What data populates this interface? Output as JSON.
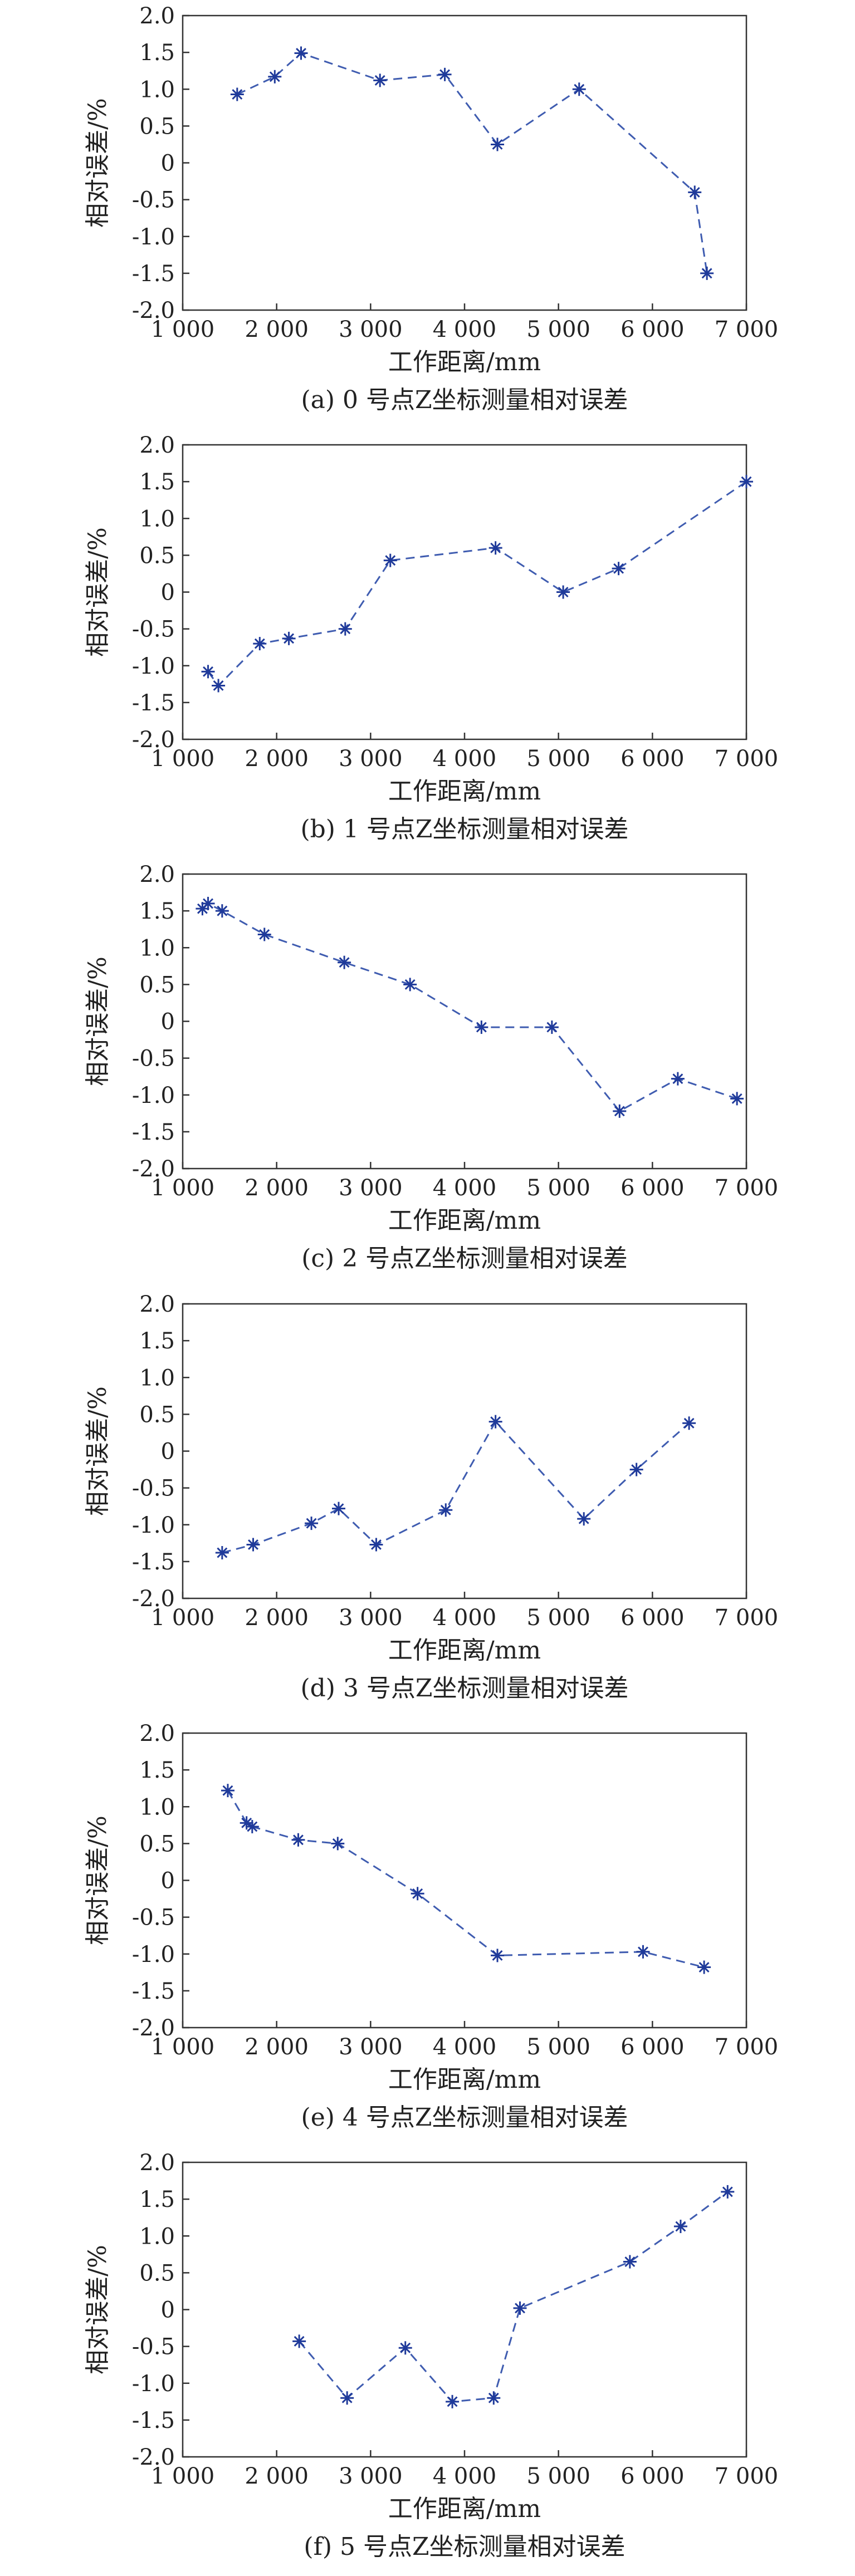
{
  "chart_data": [
    {
      "type": "line",
      "caption": "(a) 0 号点Z坐标测量相对误差",
      "xlabel": "工作距离/mm",
      "ylabel": "相对误差/%",
      "xlim": [
        1000,
        7000
      ],
      "ylim": [
        -2.0,
        2.0
      ],
      "x_ticks": [
        "1 000",
        "2 000",
        "3 000",
        "4 000",
        "5 000",
        "6 000",
        "7 000"
      ],
      "y_ticks": [
        "2.0",
        "1.5",
        "1.0",
        "0.5",
        "0",
        "-0.5",
        "-1.0",
        "-1.5",
        "-2.0"
      ],
      "grid": false,
      "series": [
        {
          "x": [
            1580,
            1980,
            2260,
            3100,
            3790,
            4350,
            5220,
            6450,
            6580
          ],
          "y": [
            0.93,
            1.17,
            1.49,
            1.12,
            1.2,
            0.25,
            1.0,
            -0.4,
            -1.5
          ]
        }
      ]
    },
    {
      "type": "line",
      "caption": "(b) 1 号点Z坐标测量相对误差",
      "xlabel": "工作距离/mm",
      "ylabel": "相对误差/%",
      "xlim": [
        1000,
        7000
      ],
      "ylim": [
        -2.0,
        2.0
      ],
      "x_ticks": [
        "1 000",
        "2 000",
        "3 000",
        "4 000",
        "5 000",
        "6 000",
        "7 000"
      ],
      "y_ticks": [
        "2.0",
        "1.5",
        "1.0",
        "0.5",
        "0",
        "-0.5",
        "-1.0",
        "-1.5",
        "-2.0"
      ],
      "grid": false,
      "series": [
        {
          "x": [
            1270,
            1380,
            1820,
            2130,
            2730,
            3210,
            4330,
            5050,
            5640,
            7000
          ],
          "y": [
            -1.08,
            -1.27,
            -0.7,
            -0.63,
            -0.5,
            0.43,
            0.6,
            0.0,
            0.32,
            1.5
          ]
        }
      ]
    },
    {
      "type": "line",
      "caption": "(c) 2 号点Z坐标测量相对误差",
      "xlabel": "工作距离/mm",
      "ylabel": "相对误差/%",
      "xlim": [
        1000,
        7000
      ],
      "ylim": [
        -2.0,
        2.0
      ],
      "x_ticks": [
        "1 000",
        "2 000",
        "3 000",
        "4 000",
        "5 000",
        "6 000",
        "7 000"
      ],
      "y_ticks": [
        "2.0",
        "1.5",
        "1.0",
        "0.5",
        "0",
        "-0.5",
        "-1.0",
        "-1.5",
        "-2.0"
      ],
      "grid": false,
      "series": [
        {
          "x": [
            1210,
            1270,
            1420,
            1870,
            2720,
            3420,
            4180,
            4930,
            5650,
            6270,
            6900
          ],
          "y": [
            1.53,
            1.6,
            1.5,
            1.18,
            0.8,
            0.5,
            -0.08,
            -0.08,
            -1.22,
            -0.78,
            -1.05
          ]
        }
      ]
    },
    {
      "type": "line",
      "caption": "(d) 3 号点Z坐标测量相对误差",
      "xlabel": "工作距离/mm",
      "ylabel": "相对误差/%",
      "xlim": [
        1000,
        7000
      ],
      "ylim": [
        -2.0,
        2.0
      ],
      "x_ticks": [
        "1 000",
        "2 000",
        "3 000",
        "4 000",
        "5 000",
        "6 000",
        "7 000"
      ],
      "y_ticks": [
        "2.0",
        "1.5",
        "1.0",
        "0.5",
        "0",
        "-0.5",
        "-1.0",
        "-1.5",
        "-2.0"
      ],
      "grid": false,
      "series": [
        {
          "x": [
            1420,
            1750,
            2370,
            2660,
            3060,
            3800,
            4330,
            5270,
            5830,
            6390
          ],
          "y": [
            -1.38,
            -1.27,
            -0.98,
            -0.78,
            -1.27,
            -0.8,
            0.4,
            -0.92,
            -0.25,
            0.38
          ]
        }
      ]
    },
    {
      "type": "line",
      "caption": "(e) 4 号点Z坐标测量相对误差",
      "xlabel": "工作距离/mm",
      "ylabel": "相对误差/%",
      "xlim": [
        1000,
        7000
      ],
      "ylim": [
        -2.0,
        2.0
      ],
      "x_ticks": [
        "1 000",
        "2 000",
        "3 000",
        "4 000",
        "5 000",
        "6 000",
        "7 000"
      ],
      "y_ticks": [
        "2.0",
        "1.5",
        "1.0",
        "0.5",
        "0",
        "-0.5",
        "-1.0",
        "-1.5",
        "-2.0"
      ],
      "grid": false,
      "series": [
        {
          "x": [
            1480,
            1680,
            1740,
            2230,
            2650,
            3500,
            4350,
            5900,
            6550
          ],
          "y": [
            1.22,
            0.78,
            0.73,
            0.55,
            0.5,
            -0.18,
            -1.02,
            -0.97,
            -1.18
          ]
        }
      ]
    },
    {
      "type": "line",
      "caption": "(f) 5 号点Z坐标测量相对误差",
      "xlabel": "工作距离/mm",
      "ylabel": "相对误差/%",
      "xlim": [
        1000,
        7000
      ],
      "ylim": [
        -2.0,
        2.0
      ],
      "x_ticks": [
        "1 000",
        "2 000",
        "3 000",
        "4 000",
        "5 000",
        "6 000",
        "7 000"
      ],
      "y_ticks": [
        "2.0",
        "1.5",
        "1.0",
        "0.5",
        "0",
        "-0.5",
        "-1.0",
        "-1.5",
        "-2.0"
      ],
      "grid": false,
      "series": [
        {
          "x": [
            2240,
            2750,
            3370,
            3870,
            4310,
            4590,
            5760,
            6300,
            6800
          ],
          "y": [
            -0.43,
            -1.2,
            -0.52,
            -1.25,
            -1.2,
            0.02,
            0.65,
            1.13,
            1.6
          ]
        }
      ]
    }
  ],
  "colors": {
    "series": "#3f5cb0",
    "marker": "#1f3a9a",
    "axis": "#333333"
  }
}
